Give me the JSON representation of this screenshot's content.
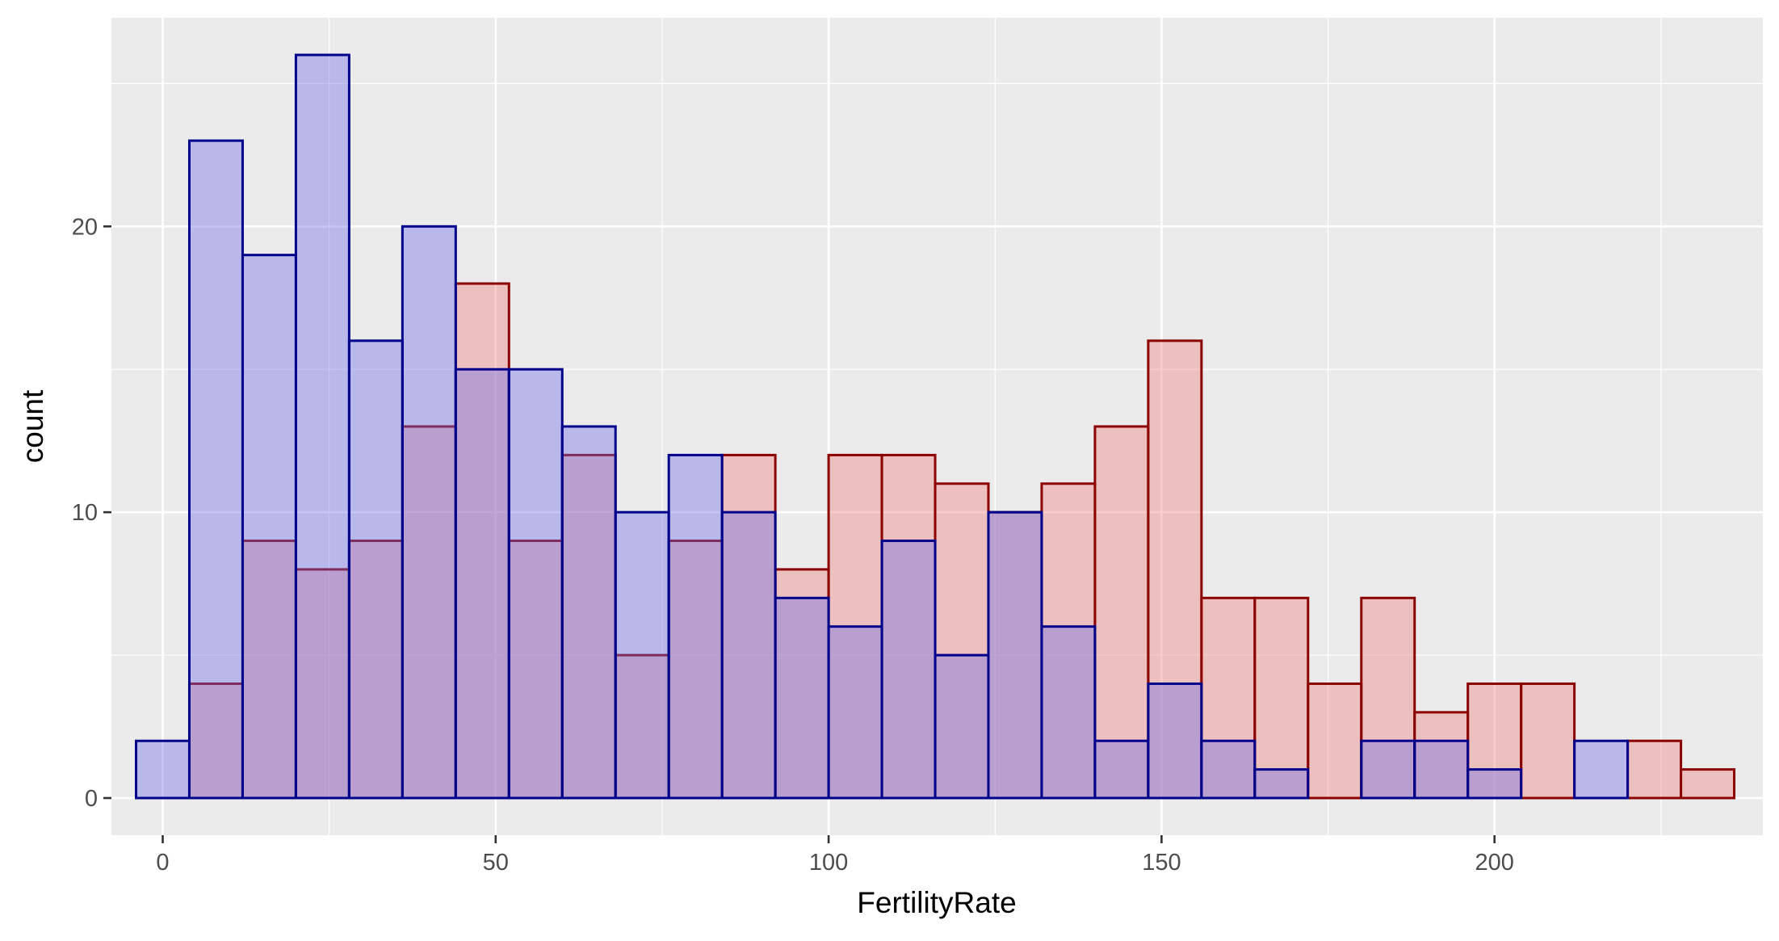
{
  "chart_data": {
    "type": "bar",
    "subtype": "overlaid-histogram",
    "xlabel": "FertilityRate",
    "ylabel": "count",
    "xlim": [
      -7.7,
      240.3
    ],
    "ylim": [
      -1.3,
      27.3
    ],
    "bin_width": 8,
    "bin_starts": [
      -4,
      4,
      12,
      20,
      28,
      36,
      44,
      52,
      60,
      68,
      76,
      84,
      92,
      100,
      108,
      116,
      124,
      132,
      140,
      148,
      156,
      164,
      172,
      180,
      188,
      196,
      204,
      212,
      220,
      228
    ],
    "x_ticks": [
      0,
      50,
      100,
      150,
      200
    ],
    "x_tick_labels": [
      "0",
      "50",
      "100",
      "150",
      "200"
    ],
    "y_ticks": [
      0,
      10,
      20
    ],
    "y_tick_labels": [
      "0",
      "10",
      "20"
    ],
    "grid": true,
    "legend": "none",
    "colors": {
      "panel_bg": "#ebebeb",
      "grid_major": "#ffffff",
      "tick_text": "#4d4d4d",
      "tick_mark": "#333333"
    },
    "series": [
      {
        "fill": "#f08080",
        "stroke": "#8b0000",
        "opacity": 0.4,
        "values": [
          0,
          4,
          9,
          8,
          9,
          13,
          18,
          9,
          12,
          5,
          9,
          12,
          8,
          12,
          12,
          11,
          10,
          11,
          13,
          16,
          7,
          7,
          4,
          7,
          3,
          4,
          4,
          0,
          2,
          1
        ]
      },
      {
        "fill": "#6b6be8",
        "stroke": "#00008b",
        "opacity": 0.4,
        "values": [
          2,
          23,
          19,
          26,
          16,
          20,
          15,
          15,
          13,
          10,
          12,
          10,
          7,
          6,
          9,
          5,
          10,
          6,
          2,
          4,
          2,
          1,
          0,
          2,
          2,
          1,
          0,
          2,
          0,
          0
        ]
      }
    ]
  }
}
